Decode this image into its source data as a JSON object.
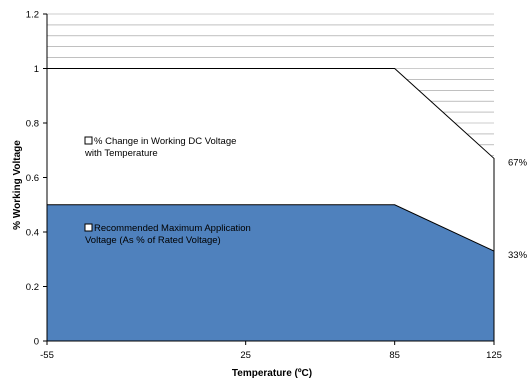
{
  "chart_data": {
    "type": "area",
    "xlabel": "Temperature (ºC)",
    "ylabel": "% Working Voltage",
    "xlim": [
      -55,
      125
    ],
    "ylim": [
      0,
      1.2
    ],
    "x_ticks": [
      -55,
      25,
      85,
      125
    ],
    "y_ticks": [
      0,
      0.2,
      0.4,
      0.6,
      0.8,
      1,
      1.2
    ],
    "y_tick_labels": [
      "0",
      "0.2",
      "0.4",
      "0.6",
      "0.8",
      "1",
      "1.2"
    ],
    "grid": {
      "horizontal": true,
      "minor_step": 0.04,
      "region": "above-upper-series"
    },
    "series": [
      {
        "name": "% Change in Working DC Voltage with Temperature",
        "legend_lines": [
          "% Change in Working DC Voltage",
          "with Temperature"
        ],
        "fill": "#ffffff",
        "x": [
          -55,
          85,
          125
        ],
        "y": [
          1.0,
          1.0,
          0.67
        ]
      },
      {
        "name": "Recommended Maximum Application Voltage (As % of Rated Voltage)",
        "legend_lines": [
          "Recommended Maximum Application",
          "Voltage (As % of Rated Voltage)"
        ],
        "fill": "#4f81bd",
        "x": [
          -55,
          85,
          125
        ],
        "y": [
          0.5,
          0.5,
          0.33
        ]
      }
    ],
    "annotations": [
      {
        "text": "67%",
        "x": 125,
        "y": 0.67
      },
      {
        "text": "33%",
        "x": 125,
        "y": 0.33
      }
    ]
  }
}
